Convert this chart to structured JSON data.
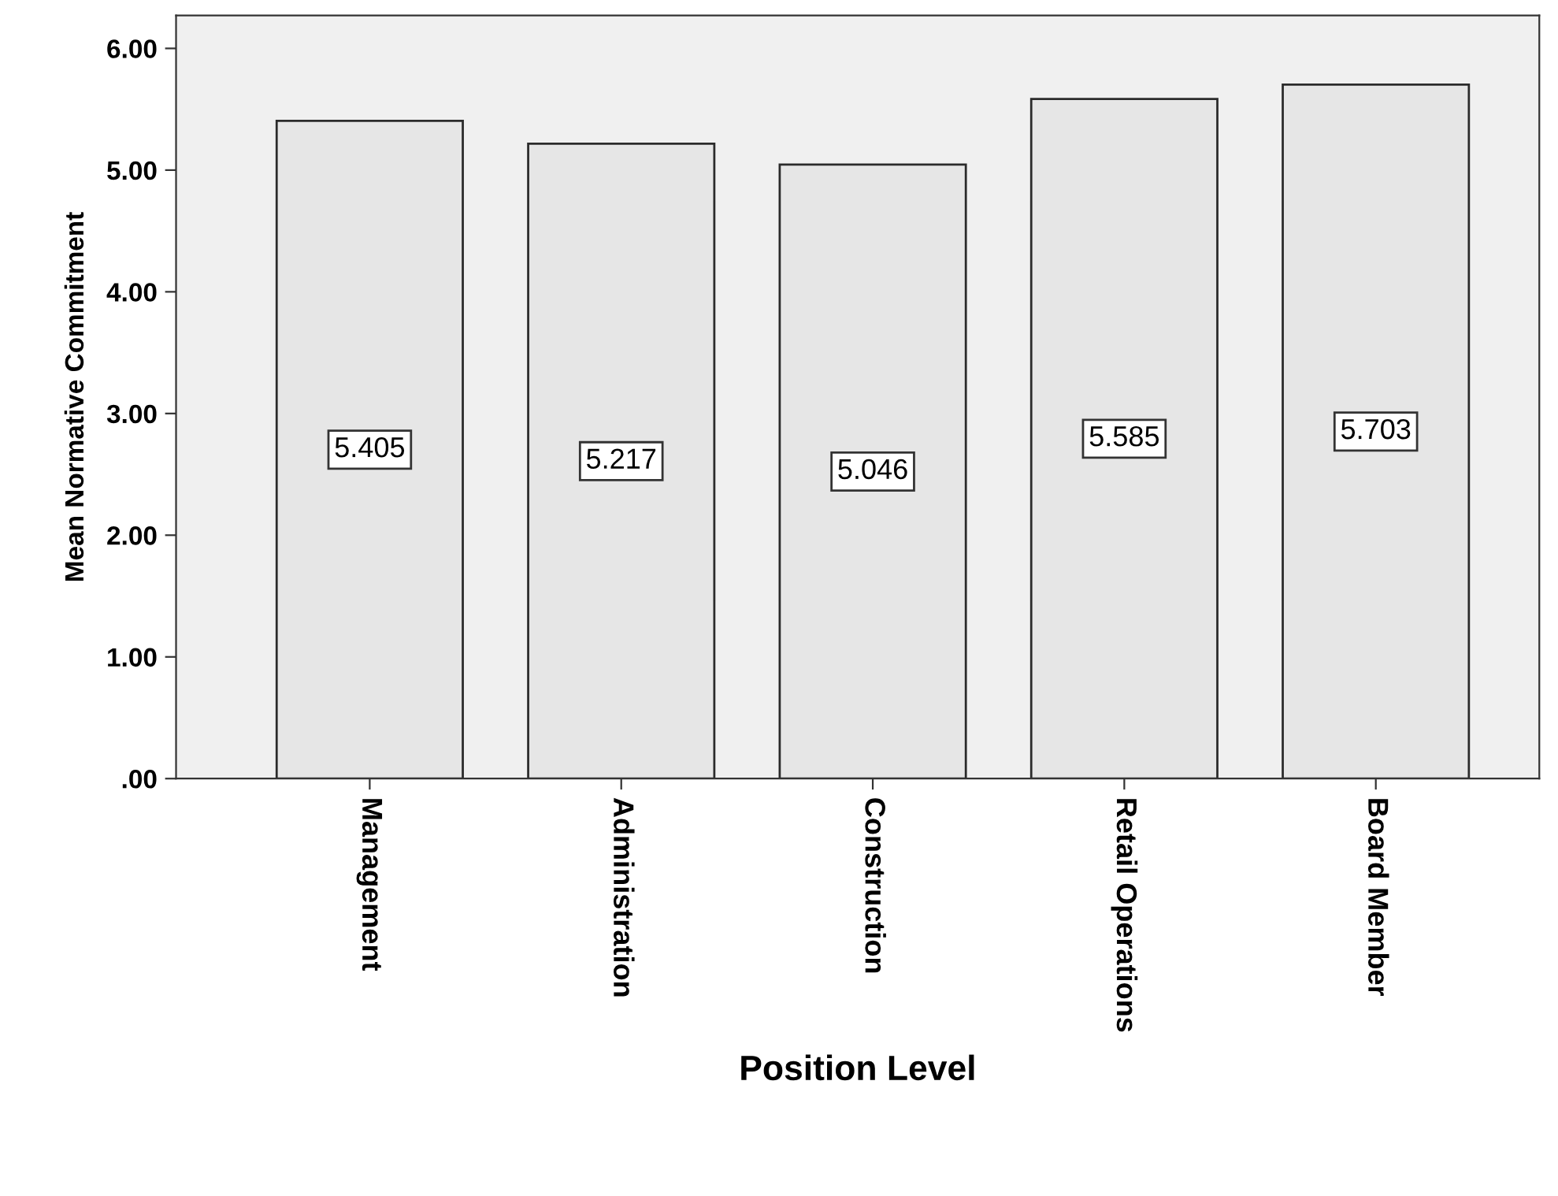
{
  "chart_data": {
    "type": "bar",
    "xlabel": "Position Level",
    "ylabel": "Mean Normative Commitment",
    "categories": [
      "Management",
      "Administration",
      "Construction",
      "Retail Operations",
      "Board Member"
    ],
    "values": [
      5.405,
      5.217,
      5.046,
      5.585,
      5.703
    ],
    "color": "#e6e6e6",
    "ylim": [
      0,
      6.27
    ],
    "yticks": [
      {
        "value": 0,
        "label": ".00"
      },
      {
        "value": 1,
        "label": "1.00"
      },
      {
        "value": 2,
        "label": "2.00"
      },
      {
        "value": 3,
        "label": "3.00"
      },
      {
        "value": 4,
        "label": "4.00"
      },
      {
        "value": 5,
        "label": "5.00"
      },
      {
        "value": 6,
        "label": "6.00"
      }
    ],
    "data_labels": true,
    "grid": false,
    "legend": false
  }
}
